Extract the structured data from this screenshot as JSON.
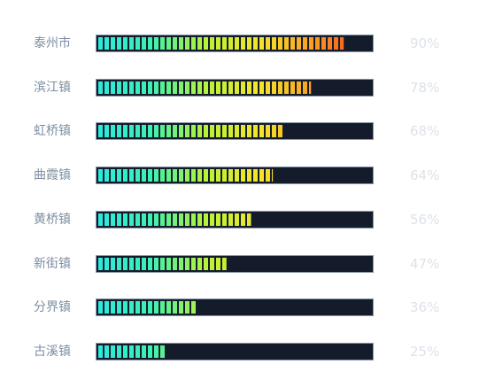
{
  "chart_data": {
    "type": "bar",
    "orientation": "horizontal",
    "style": "segmented-gradient",
    "categories": [
      "泰州市",
      "滨江镇",
      "虹桥镇",
      "曲霞镇",
      "黄桥镇",
      "新街镇",
      "分界镇",
      "古溪镇"
    ],
    "values": [
      90,
      78,
      68,
      64,
      56,
      47,
      36,
      25
    ],
    "value_labels": [
      "90%",
      "78%",
      "68%",
      "64%",
      "56%",
      "47%",
      "36%",
      "25%"
    ],
    "xlim": [
      0,
      100
    ],
    "grid": false,
    "legend": "none",
    "title": "",
    "xlabel": "",
    "ylabel": ""
  },
  "colors": {
    "track_background": "#141c2b",
    "track_border": "#8a96a6",
    "label": "#7d8fa1",
    "value_label": "#dde2e8",
    "gradient_stops": [
      "#2ee8e0",
      "#3ef0b0",
      "#b8f23a",
      "#f5e52a",
      "#fb9a22",
      "#f23a1a"
    ]
  }
}
